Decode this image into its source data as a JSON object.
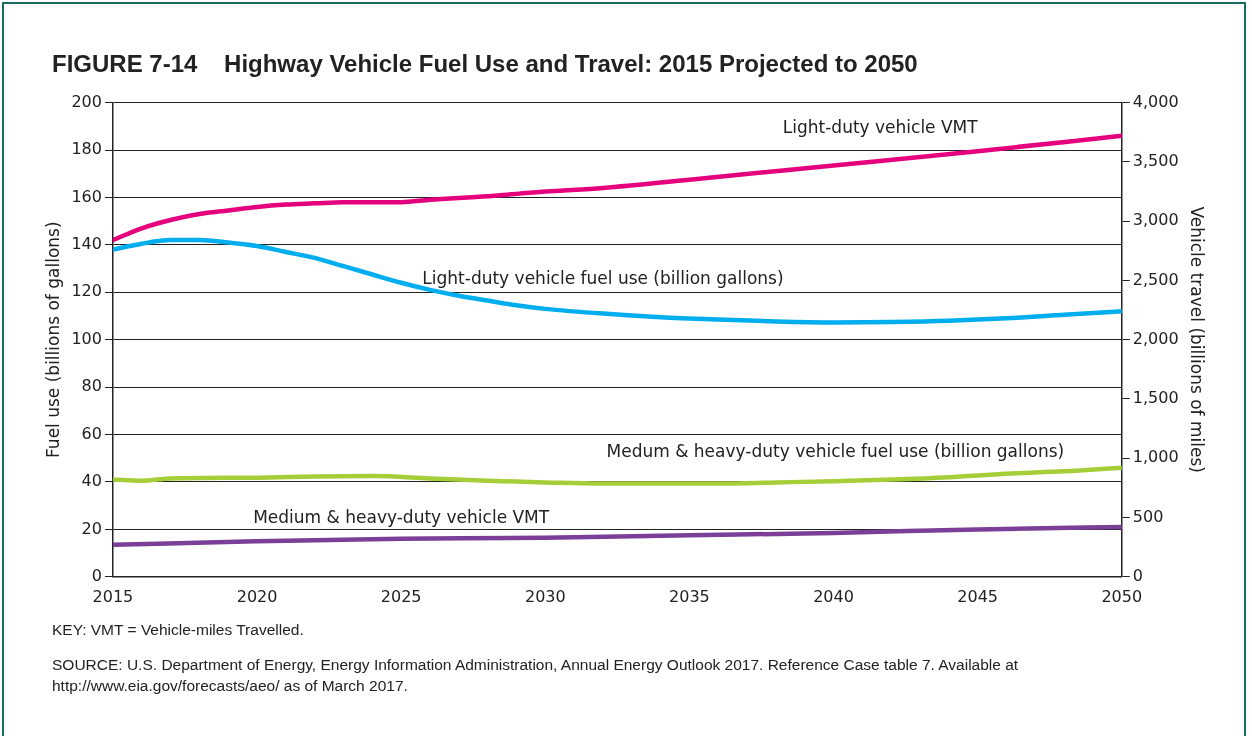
{
  "chart_data": {
    "type": "line",
    "title": "FIGURE 7-14    Highway Vehicle Fuel Use and Travel: 2015 Projected to 2050",
    "ylabel": "Fuel use (billions of gallons)",
    "y2label": "Vehicle travel (billions of miles)",
    "xlim": [
      2015,
      2050
    ],
    "xticks": [
      2015,
      2020,
      2025,
      2030,
      2035,
      2040,
      2045,
      2050
    ],
    "ylim": [
      0,
      200
    ],
    "yticks": [
      0,
      20,
      40,
      60,
      80,
      100,
      120,
      140,
      160,
      180,
      200
    ],
    "y2lim": [
      0,
      4000
    ],
    "y2ticks": [
      {
        "value": 0,
        "label": "0"
      },
      {
        "value": 500,
        "label": "500"
      },
      {
        "value": 1000,
        "label": "1,000"
      },
      {
        "value": 1500,
        "label": "1,500"
      },
      {
        "value": 2000,
        "label": "2,000"
      },
      {
        "value": 2500,
        "label": "2,500"
      },
      {
        "value": 3000,
        "label": "3,000"
      },
      {
        "value": 3500,
        "label": "3,500"
      },
      {
        "value": 4000,
        "label": "4,000"
      }
    ],
    "grid": "y",
    "legend": false,
    "marker": "none",
    "line_style": "solid",
    "series": [
      {
        "name": "Light-duty vehicle VMT",
        "color": "#e5007e",
        "axis": "y2",
        "x": [
          2015,
          2016,
          2017,
          2018,
          2019,
          2020,
          2021,
          2022,
          2023,
          2025,
          2026,
          2028,
          2030,
          2032,
          2035,
          2040,
          2045,
          2050
        ],
        "values": [
          2840,
          2940,
          3010,
          3060,
          3090,
          3120,
          3140,
          3150,
          3160,
          3160,
          3180,
          3210,
          3250,
          3280,
          3350,
          3470,
          3590,
          3720
        ]
      },
      {
        "name": "Light-duty vehicle fuel use (billion gallons)",
        "color": "#00aeef",
        "x": [
          2015,
          2016,
          2017,
          2018,
          2019,
          2020,
          2021,
          2022,
          2023,
          2024,
          2025,
          2026,
          2027,
          2028,
          2029,
          2030,
          2032,
          2034,
          2036,
          2038,
          2040,
          2042,
          2044,
          2046,
          2048,
          2050
        ],
        "values": [
          138,
          140.5,
          142,
          142,
          141,
          139.5,
          137,
          134.5,
          131,
          127.5,
          124,
          121,
          118.5,
          116.5,
          114.5,
          113,
          111,
          109.5,
          108.5,
          107.7,
          107.3,
          107.5,
          108,
          109,
          110.5,
          112
        ]
      },
      {
        "name": "Medum & heavy-duty vehicle fuel use (billion gallons)",
        "color": "#a6ce39",
        "x": [
          2015,
          2016,
          2017,
          2020,
          2022,
          2024,
          2026,
          2028,
          2030,
          2032,
          2036,
          2038,
          2040,
          2042,
          2044,
          2046,
          2048,
          2050
        ],
        "values": [
          41,
          40.5,
          41.5,
          41.8,
          42.3,
          42.5,
          41.5,
          40.5,
          39.8,
          39.3,
          39.3,
          39.8,
          40.3,
          41,
          42,
          43.5,
          44.5,
          46
        ]
      },
      {
        "name": "Medium & heavy-duty vehicle VMT",
        "color": "#7b3f98",
        "axis": "y2",
        "x": [
          2015,
          2020,
          2025,
          2030,
          2035,
          2040,
          2045,
          2050
        ],
        "values": [
          270,
          300,
          320,
          330,
          350,
          370,
          400,
          420
        ]
      }
    ],
    "annotations": [
      "KEY: VMT = Vehicle-miles Travelled.",
      "SOURCE: U.S. Department of Energy, Energy Information Administration, Annual Energy Outlook 2017. Reference Case table 7. Available at http://www.eia.gov/forecasts/aeo/ as of March 2017."
    ]
  }
}
